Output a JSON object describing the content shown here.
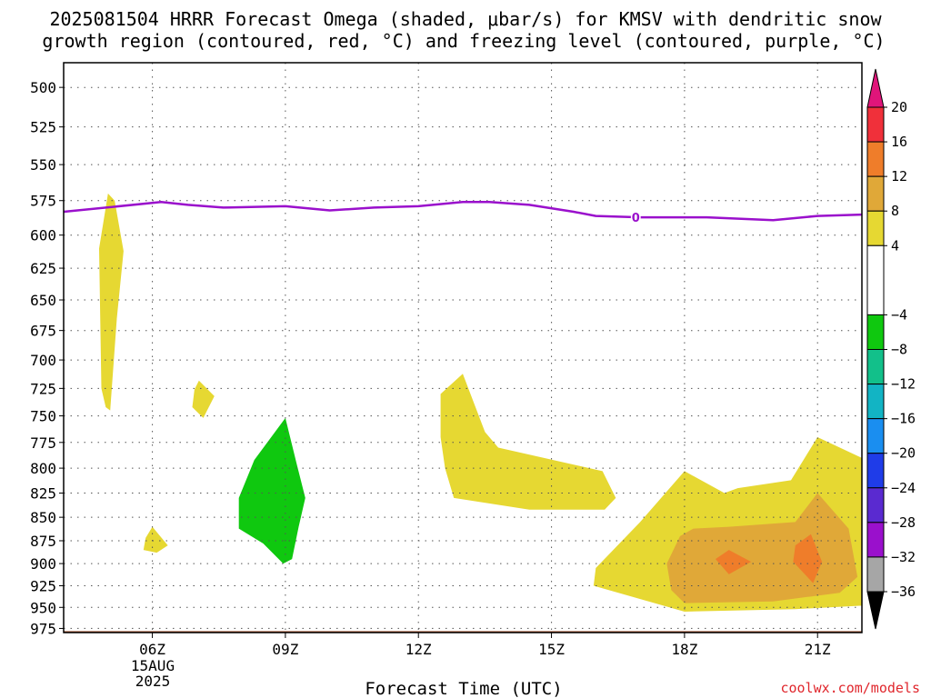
{
  "title_line1": "2025081504 HRRR Forecast Omega (shaded, μbar/s) for KMSV with dendritic snow",
  "title_line2": "growth region (contoured, red, °C) and freezing level (contoured, purple, °C)",
  "date_label": {
    "day": "15AUG",
    "year": "2025"
  },
  "credit": "coolwx.com/models",
  "chart_data": {
    "type": "heatmap",
    "title": "2025081504 HRRR Forecast Omega (shaded, μbar/s) for KMSV with dendritic snow growth region (contoured, red, °C) and freezing level (contoured, purple, °C)",
    "xlabel": "Forecast Time (UTC)",
    "ylabel": "",
    "x_hours_since_04Z": [
      0,
      1,
      2,
      3,
      4,
      5,
      6,
      7,
      8,
      9,
      10,
      11,
      12,
      13,
      14,
      15,
      16,
      17,
      18
    ],
    "xlim_hours_since_04Z": [
      0,
      18
    ],
    "x_ticks": [
      {
        "hour": 2,
        "label": "06Z"
      },
      {
        "hour": 5,
        "label": "09Z"
      },
      {
        "hour": 8,
        "label": "12Z"
      },
      {
        "hour": 11,
        "label": "15Z"
      },
      {
        "hour": 14,
        "label": "18Z"
      },
      {
        "hour": 17,
        "label": "21Z"
      }
    ],
    "y_levels_hPa": [
      500,
      525,
      550,
      575,
      600,
      625,
      650,
      675,
      700,
      725,
      750,
      775,
      800,
      825,
      850,
      875,
      900,
      925,
      950,
      975
    ],
    "ylim_hPa": [
      980,
      485
    ],
    "y_scale": "log",
    "grid": true,
    "colorbar": {
      "ticks": [
        20,
        16,
        12,
        8,
        4,
        -4,
        -8,
        -12,
        -16,
        -20,
        -24,
        -28,
        -32,
        -36
      ],
      "bands": [
        {
          "from": 16,
          "to": 20,
          "color": "#f0303a"
        },
        {
          "from": 12,
          "to": 16,
          "color": "#ef7d2a"
        },
        {
          "from": 8,
          "to": 12,
          "color": "#e0a838"
        },
        {
          "from": 4,
          "to": 8,
          "color": "#e6d832"
        },
        {
          "from": -4,
          "to": 4,
          "color": "#ffffff"
        },
        {
          "from": -8,
          "to": -4,
          "color": "#0fc80f"
        },
        {
          "from": -12,
          "to": -8,
          "color": "#12c08a"
        },
        {
          "from": -16,
          "to": -12,
          "color": "#12b4c4"
        },
        {
          "from": -20,
          "to": -16,
          "color": "#1a8ef0"
        },
        {
          "from": -24,
          "to": -20,
          "color": "#1f3ce8"
        },
        {
          "from": -28,
          "to": -24,
          "color": "#5a2ad0"
        },
        {
          "from": -32,
          "to": -28,
          "color": "#9a10cc"
        },
        {
          "from": -36,
          "to": -32,
          "color": "#a6a6a6"
        }
      ],
      "top_arrow_color": "#e0157a",
      "bottom_arrow_color": "#000000"
    },
    "freezing_level": {
      "name": "0",
      "color": "#9a10cc",
      "points": [
        [
          0.0,
          583
        ],
        [
          2.2,
          576
        ],
        [
          2.8,
          578
        ],
        [
          3.6,
          580
        ],
        [
          5.0,
          579
        ],
        [
          6.0,
          582
        ],
        [
          7.0,
          580
        ],
        [
          8.0,
          579
        ],
        [
          9.0,
          576
        ],
        [
          9.6,
          576
        ],
        [
          10.5,
          578
        ],
        [
          11.5,
          583
        ],
        [
          12.0,
          586
        ],
        [
          13.0,
          587
        ],
        [
          14.5,
          587
        ],
        [
          16.0,
          589
        ],
        [
          17.0,
          586
        ],
        [
          18.0,
          585
        ]
      ],
      "label": {
        "text": "0",
        "x_hour": 12.9,
        "p_hPa": 587
      }
    },
    "omega_regions": [
      {
        "name": "yellow",
        "value_min": 4,
        "value_max": 8,
        "color": "#e6d832",
        "outline": [
          [
            1.0,
            570
          ],
          [
            1.15,
            575
          ],
          [
            1.35,
            612
          ],
          [
            1.2,
            665
          ],
          [
            1.05,
            745
          ],
          [
            0.95,
            742
          ],
          [
            0.85,
            725
          ],
          [
            0.8,
            610
          ]
        ]
      },
      {
        "name": "yellow",
        "value_min": 4,
        "value_max": 8,
        "color": "#e6d832",
        "outline": [
          [
            3.05,
            718
          ],
          [
            3.4,
            732
          ],
          [
            3.15,
            752
          ],
          [
            2.9,
            742
          ],
          [
            2.95,
            726
          ]
        ]
      },
      {
        "name": "yellow",
        "value_min": 4,
        "value_max": 8,
        "color": "#e6d832",
        "outline": [
          [
            2.0,
            860
          ],
          [
            2.35,
            880
          ],
          [
            2.1,
            888
          ],
          [
            1.8,
            885
          ],
          [
            1.85,
            872
          ]
        ]
      },
      {
        "name": "green",
        "value_min": -8,
        "value_max": -4,
        "color": "#0fc80f",
        "outline": [
          [
            5.0,
            752
          ],
          [
            5.25,
            795
          ],
          [
            5.45,
            830
          ],
          [
            5.3,
            860
          ],
          [
            5.15,
            895
          ],
          [
            4.95,
            900
          ],
          [
            4.5,
            878
          ],
          [
            3.95,
            862
          ],
          [
            3.95,
            830
          ],
          [
            4.3,
            792
          ]
        ]
      },
      {
        "name": "yellow",
        "value_min": 4,
        "value_max": 8,
        "color": "#e6d832",
        "outline": [
          [
            9.0,
            712
          ],
          [
            8.5,
            730
          ],
          [
            8.5,
            770
          ],
          [
            8.6,
            800
          ],
          [
            8.8,
            830
          ],
          [
            10.5,
            842
          ],
          [
            12.2,
            842
          ],
          [
            12.45,
            830
          ],
          [
            12.15,
            803
          ],
          [
            9.8,
            780
          ],
          [
            9.5,
            765
          ]
        ]
      },
      {
        "name": "yellow",
        "value_min": 4,
        "value_max": 8,
        "color": "#e6d832",
        "outline": [
          [
            14.0,
            803
          ],
          [
            13.0,
            855
          ],
          [
            12.0,
            905
          ],
          [
            11.95,
            925
          ],
          [
            14.0,
            955
          ],
          [
            16.5,
            952
          ],
          [
            18.0,
            948
          ],
          [
            18.0,
            790
          ],
          [
            17.0,
            770
          ],
          [
            16.4,
            812
          ],
          [
            15.2,
            820
          ],
          [
            14.9,
            825
          ]
        ]
      },
      {
        "name": "orange",
        "value_min": 8,
        "value_max": 12,
        "color": "#e0a838",
        "outline": [
          [
            13.9,
            870
          ],
          [
            13.6,
            900
          ],
          [
            13.7,
            930
          ],
          [
            14.0,
            945
          ],
          [
            16.0,
            943
          ],
          [
            17.5,
            933
          ],
          [
            17.9,
            915
          ],
          [
            17.7,
            862
          ],
          [
            17.0,
            825
          ],
          [
            16.5,
            855
          ],
          [
            15.0,
            860
          ],
          [
            14.2,
            862
          ]
        ]
      },
      {
        "name": "red",
        "value_min": 12,
        "value_max": 16,
        "color": "#ef7d2a",
        "outline": [
          [
            14.7,
            895
          ],
          [
            15.0,
            885
          ],
          [
            15.5,
            898
          ],
          [
            15.0,
            912
          ]
        ]
      },
      {
        "name": "red",
        "value_min": 12,
        "value_max": 16,
        "color": "#ef7d2a",
        "outline": [
          [
            16.5,
            880
          ],
          [
            16.85,
            868
          ],
          [
            17.1,
            898
          ],
          [
            16.9,
            922
          ],
          [
            16.45,
            898
          ]
        ]
      }
    ],
    "surface_layer": {
      "name": "terrain",
      "color": "#a0522d",
      "p_hPa_top": 975
    }
  }
}
